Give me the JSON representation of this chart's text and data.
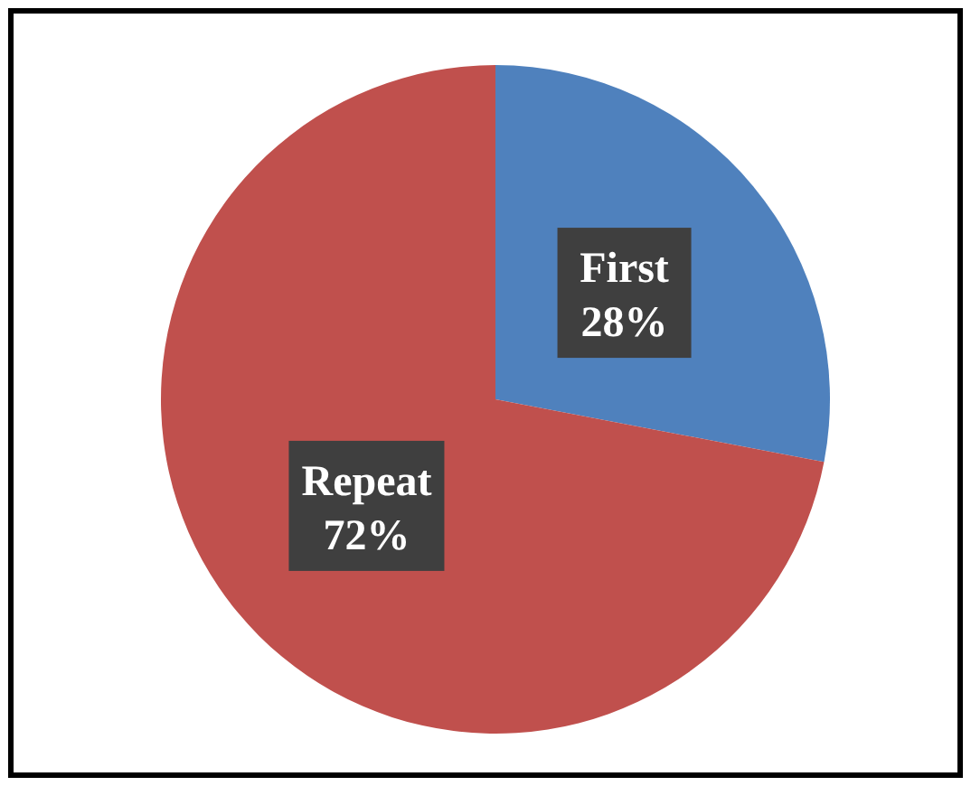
{
  "chart_data": {
    "type": "pie",
    "categories": [
      "First",
      "Repeat"
    ],
    "values": [
      28,
      72
    ],
    "value_labels": [
      "28%",
      "72%"
    ],
    "colors": [
      "#4f81bd",
      "#c0504d"
    ]
  }
}
